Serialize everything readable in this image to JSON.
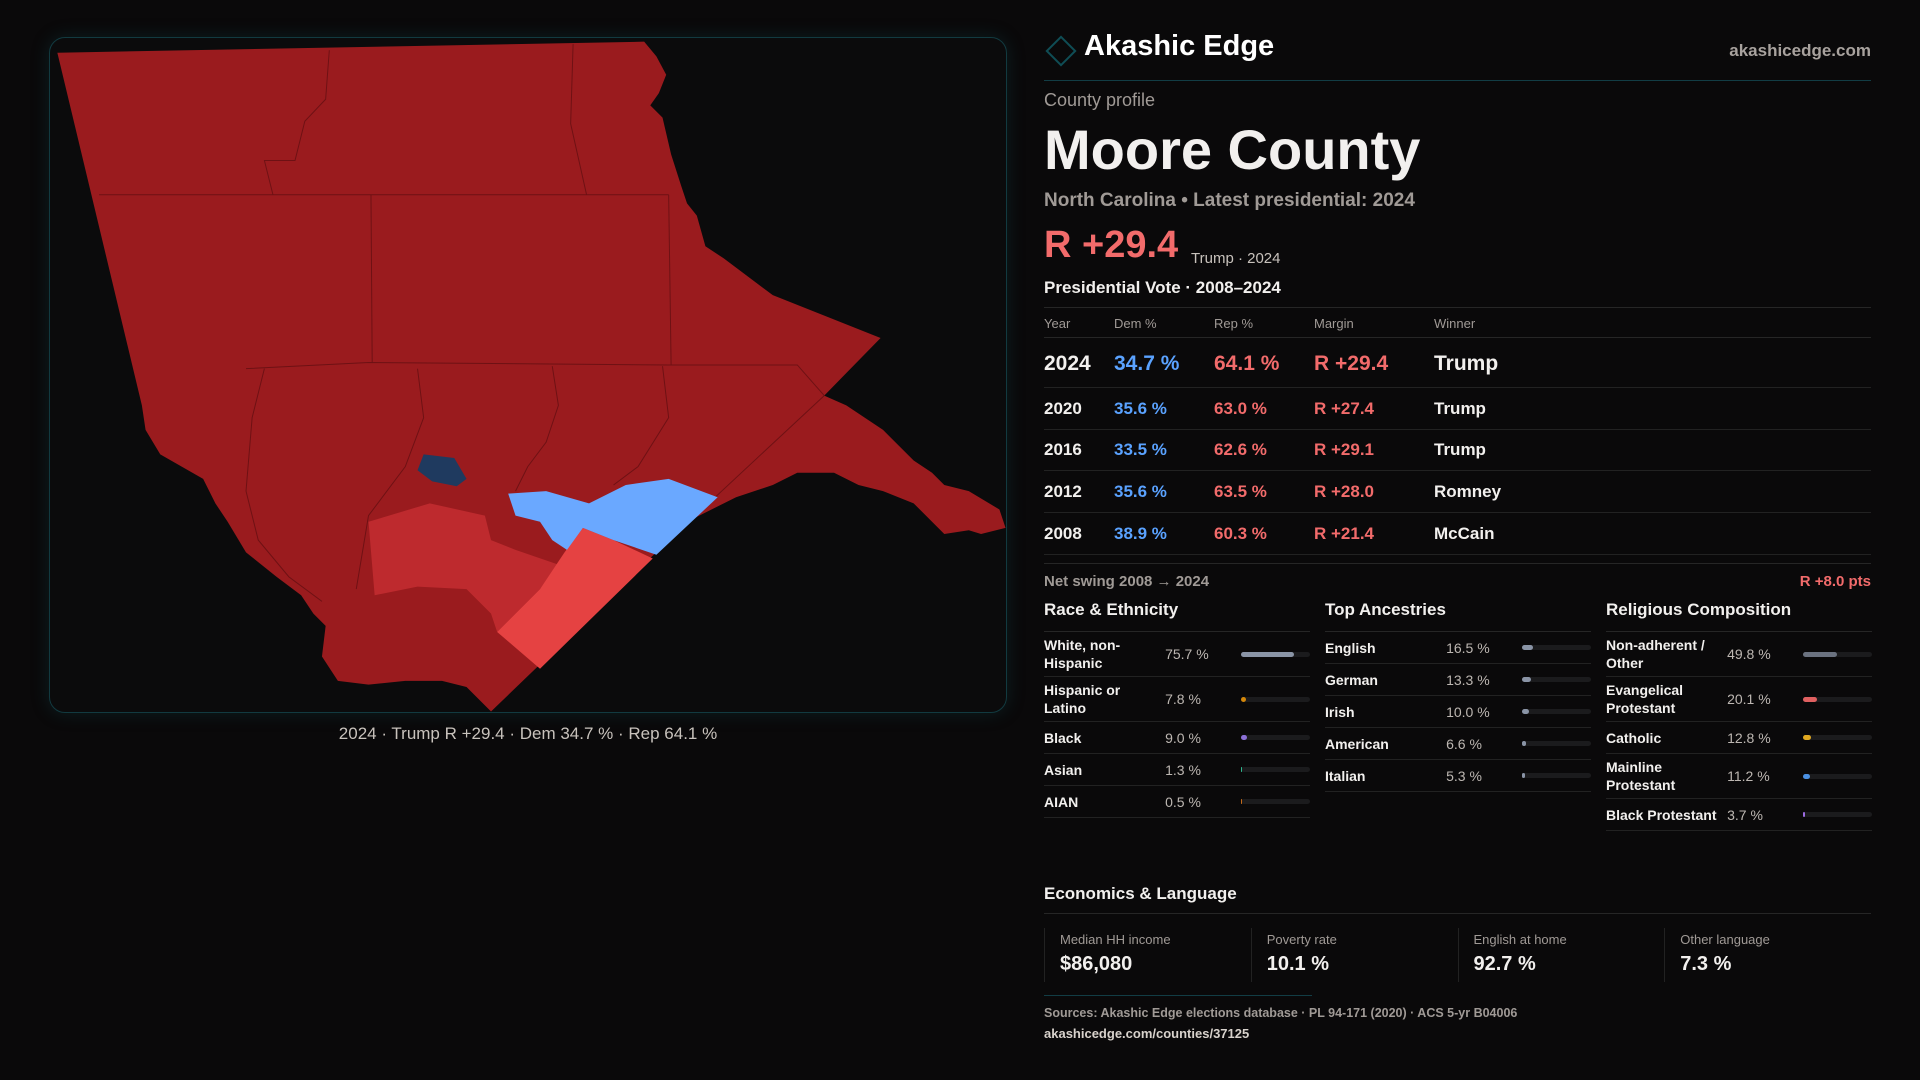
{
  "brand": {
    "name": "Akashic Edge",
    "site": "akashicedge.com"
  },
  "profile": {
    "eyebrow": "County profile",
    "title": "Moore County",
    "subtitle": "North Carolina • Latest presidential: 2024",
    "margin": "R +29.4",
    "margin_note": "Trump · 2024"
  },
  "map": {
    "caption": "2024 · Trump R +29.4 · Dem 34.7 % · Rep 64.1 %",
    "colors": {
      "safe_r": "#9a1b1e",
      "lean_r": "#be2a2e",
      "tilt_r": "#e54242",
      "lean_d": "#6aa8ff",
      "safe_d": "#1f3a5f"
    }
  },
  "votes": {
    "title": "Presidential Vote · 2008–2024",
    "headers": [
      "Year",
      "Dem %",
      "Rep %",
      "Margin",
      "Winner"
    ],
    "rows": [
      {
        "year": "2024",
        "dem": "34.7 %",
        "rep": "64.1 %",
        "margin": "R +29.4",
        "winner": "Trump"
      },
      {
        "year": "2020",
        "dem": "35.6 %",
        "rep": "63.0 %",
        "margin": "R +27.4",
        "winner": "Trump"
      },
      {
        "year": "2016",
        "dem": "33.5 %",
        "rep": "62.6 %",
        "margin": "R +29.1",
        "winner": "Trump"
      },
      {
        "year": "2012",
        "dem": "35.6 %",
        "rep": "63.5 %",
        "margin": "R +28.0",
        "winner": "Romney"
      },
      {
        "year": "2008",
        "dem": "38.9 %",
        "rep": "60.3 %",
        "margin": "R +21.4",
        "winner": "McCain"
      }
    ],
    "swing_label": "Net swing 2008 → 2024",
    "swing_value": "R +8.0 pts"
  },
  "race": {
    "title": "Race & Ethnicity",
    "items": [
      {
        "label": "White, non-Hispanic",
        "value": "75.7 %",
        "pct": 75.7,
        "color": "#8a94a6"
      },
      {
        "label": "Hispanic or Latino",
        "value": "7.8 %",
        "pct": 7.8,
        "color": "#d4870a"
      },
      {
        "label": "Black",
        "value": "9.0 %",
        "pct": 9.0,
        "color": "#8b6fd6"
      },
      {
        "label": "Asian",
        "value": "1.3 %",
        "pct": 1.3,
        "color": "#2fb58e"
      },
      {
        "label": "AIAN",
        "value": "0.5 %",
        "pct": 0.5,
        "color": "#c46a1a"
      }
    ]
  },
  "ancestry": {
    "title": "Top Ancestries",
    "items": [
      {
        "label": "English",
        "value": "16.5 %",
        "pct": 16.5,
        "color": "#8a94a6"
      },
      {
        "label": "German",
        "value": "13.3 %",
        "pct": 13.3,
        "color": "#8a94a6"
      },
      {
        "label": "Irish",
        "value": "10.0 %",
        "pct": 10.0,
        "color": "#8a94a6"
      },
      {
        "label": "American",
        "value": "6.6 %",
        "pct": 6.6,
        "color": "#8a94a6"
      },
      {
        "label": "Italian",
        "value": "5.3 %",
        "pct": 5.3,
        "color": "#8a94a6"
      }
    ]
  },
  "religion": {
    "title": "Religious Composition",
    "items": [
      {
        "label": "Non-adherent / Other",
        "value": "49.8 %",
        "pct": 49.8,
        "color": "#6b7280"
      },
      {
        "label": "Evangelical Protestant",
        "value": "20.1 %",
        "pct": 20.1,
        "color": "#e06060"
      },
      {
        "label": "Catholic",
        "value": "12.8 %",
        "pct": 12.8,
        "color": "#e0a820"
      },
      {
        "label": "Mainline Protestant",
        "value": "11.2 %",
        "pct": 11.2,
        "color": "#4a90e2"
      },
      {
        "label": "Black Protestant",
        "value": "3.7 %",
        "pct": 3.7,
        "color": "#9b6be0"
      }
    ]
  },
  "economics": {
    "title": "Economics & Language",
    "stats": [
      {
        "label": "Median HH income",
        "value": "$86,080"
      },
      {
        "label": "Poverty rate",
        "value": "10.1 %"
      },
      {
        "label": "English at home",
        "value": "92.7 %"
      },
      {
        "label": "Other language",
        "value": "7.3 %"
      }
    ]
  },
  "footer": {
    "sources": "Sources: Akashic Edge elections database · PL 94-171 (2020) · ACS 5-yr B04006",
    "url": "akashicedge.com/counties/37125"
  }
}
